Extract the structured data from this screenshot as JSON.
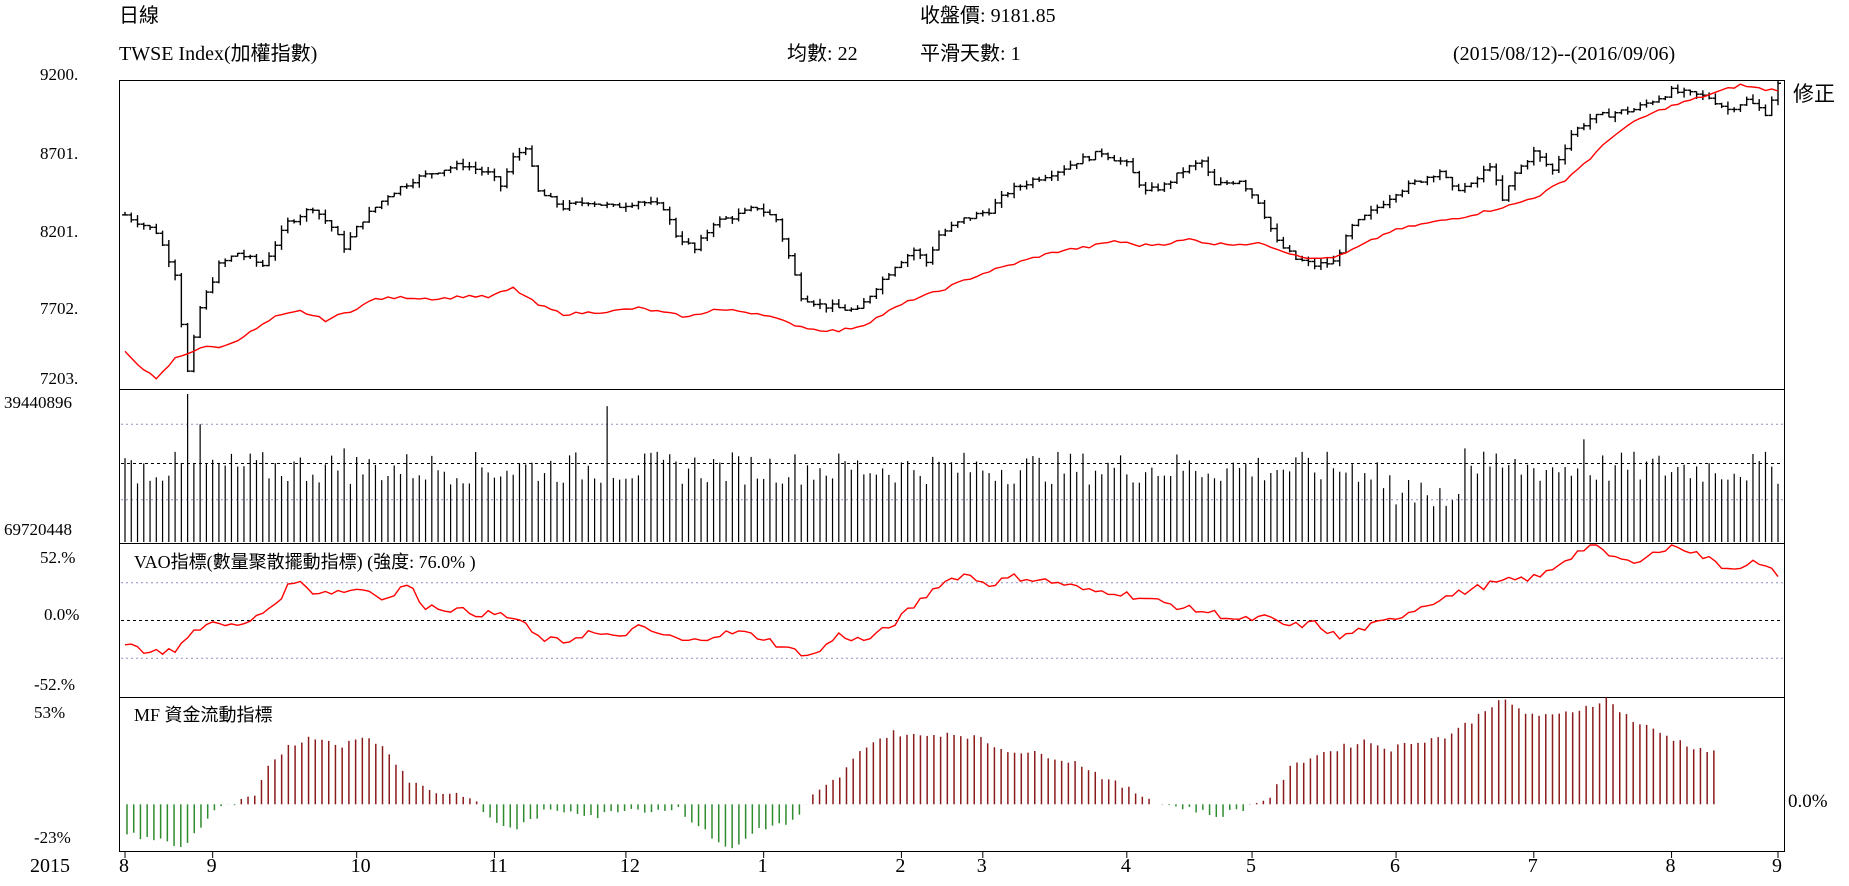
{
  "header": {
    "period": "日線",
    "close_label": "收盤價",
    "close_value": "9181.85",
    "index_name": "TWSE Index(加權指數)",
    "ma_label": "均數",
    "ma_value": "22",
    "smooth_label": "平滑天數",
    "smooth_value": "1",
    "date_range": "(2015/08/12)--(2016/09/06)",
    "correction_button": "修正"
  },
  "colors": {
    "price_bars": "#000000",
    "ma_line": "#ff0000",
    "vao_line": "#ff0000",
    "mf_positive": "#8b1a1a",
    "mf_negative": "#2e8b2e",
    "grid_dash": "#9090c0"
  },
  "chart_data": [
    {
      "type": "ohlc",
      "name": "price",
      "ylim": [
        7203,
        9200
      ],
      "yticks": [
        "9200.",
        "8701.",
        "8201.",
        "7702.",
        "7203."
      ],
      "anchors_close": [
        [
          0,
          8330
        ],
        [
          5,
          8220
        ],
        [
          8,
          7950
        ],
        [
          10,
          7300
        ],
        [
          12,
          7720
        ],
        [
          15,
          8000
        ],
        [
          18,
          8080
        ],
        [
          22,
          8000
        ],
        [
          26,
          8280
        ],
        [
          30,
          8380
        ],
        [
          33,
          8250
        ],
        [
          35,
          8120
        ],
        [
          38,
          8300
        ],
        [
          42,
          8460
        ],
        [
          46,
          8560
        ],
        [
          50,
          8620
        ],
        [
          54,
          8660
        ],
        [
          58,
          8600
        ],
        [
          60,
          8520
        ],
        [
          62,
          8700
        ],
        [
          64,
          8780
        ],
        [
          66,
          8480
        ],
        [
          70,
          8380
        ],
        [
          74,
          8420
        ],
        [
          78,
          8380
        ],
        [
          82,
          8420
        ],
        [
          86,
          8380
        ],
        [
          88,
          8200
        ],
        [
          91,
          8100
        ],
        [
          94,
          8280
        ],
        [
          98,
          8330
        ],
        [
          101,
          8380
        ],
        [
          104,
          8300
        ],
        [
          106,
          8060
        ],
        [
          108,
          7800
        ],
        [
          111,
          7740
        ],
        [
          114,
          7720
        ],
        [
          117,
          7700
        ],
        [
          120,
          7860
        ],
        [
          123,
          8000
        ],
        [
          126,
          8100
        ],
        [
          128,
          8020
        ],
        [
          130,
          8200
        ],
        [
          134,
          8300
        ],
        [
          138,
          8360
        ],
        [
          141,
          8480
        ],
        [
          145,
          8560
        ],
        [
          149,
          8620
        ],
        [
          152,
          8680
        ],
        [
          156,
          8740
        ],
        [
          160,
          8660
        ],
        [
          163,
          8480
        ],
        [
          166,
          8520
        ],
        [
          169,
          8620
        ],
        [
          172,
          8680
        ],
        [
          174,
          8520
        ],
        [
          178,
          8560
        ],
        [
          181,
          8420
        ],
        [
          184,
          8150
        ],
        [
          187,
          8040
        ],
        [
          190,
          8000
        ],
        [
          193,
          8020
        ],
        [
          196,
          8250
        ],
        [
          200,
          8380
        ],
        [
          203,
          8480
        ],
        [
          207,
          8560
        ],
        [
          210,
          8620
        ],
        [
          212,
          8500
        ],
        [
          215,
          8520
        ],
        [
          218,
          8660
        ],
        [
          220,
          8420
        ],
        [
          222,
          8600
        ],
        [
          225,
          8740
        ],
        [
          228,
          8620
        ],
        [
          231,
          8860
        ],
        [
          234,
          8960
        ],
        [
          238,
          9000
        ],
        [
          241,
          9020
        ],
        [
          244,
          9080
        ],
        [
          247,
          9140
        ],
        [
          250,
          9120
        ],
        [
          253,
          9100
        ],
        [
          256,
          9020
        ],
        [
          259,
          9080
        ],
        [
          262,
          9000
        ],
        [
          264,
          9181.85
        ]
      ],
      "ma_anchors": [
        [
          0,
          7430
        ],
        [
          5,
          7250
        ],
        [
          8,
          7390
        ],
        [
          12,
          7460
        ],
        [
          16,
          7470
        ],
        [
          20,
          7560
        ],
        [
          24,
          7660
        ],
        [
          28,
          7700
        ],
        [
          32,
          7640
        ],
        [
          36,
          7700
        ],
        [
          40,
          7780
        ],
        [
          45,
          7790
        ],
        [
          50,
          7780
        ],
        [
          55,
          7800
        ],
        [
          58,
          7790
        ],
        [
          62,
          7850
        ],
        [
          66,
          7740
        ],
        [
          70,
          7680
        ],
        [
          74,
          7690
        ],
        [
          78,
          7700
        ],
        [
          82,
          7720
        ],
        [
          86,
          7690
        ],
        [
          90,
          7660
        ],
        [
          94,
          7710
        ],
        [
          98,
          7700
        ],
        [
          102,
          7680
        ],
        [
          106,
          7620
        ],
        [
          110,
          7580
        ],
        [
          114,
          7570
        ],
        [
          118,
          7610
        ],
        [
          122,
          7700
        ],
        [
          126,
          7780
        ],
        [
          130,
          7830
        ],
        [
          134,
          7900
        ],
        [
          138,
          7960
        ],
        [
          142,
          8010
        ],
        [
          146,
          8060
        ],
        [
          150,
          8100
        ],
        [
          154,
          8120
        ],
        [
          158,
          8160
        ],
        [
          162,
          8130
        ],
        [
          166,
          8140
        ],
        [
          170,
          8170
        ],
        [
          174,
          8140
        ],
        [
          178,
          8140
        ],
        [
          182,
          8140
        ],
        [
          186,
          8080
        ],
        [
          190,
          8040
        ],
        [
          194,
          8060
        ],
        [
          198,
          8140
        ],
        [
          202,
          8220
        ],
        [
          206,
          8260
        ],
        [
          210,
          8290
        ],
        [
          214,
          8320
        ],
        [
          218,
          8360
        ],
        [
          222,
          8400
        ],
        [
          226,
          8460
        ],
        [
          230,
          8560
        ],
        [
          234,
          8700
        ],
        [
          238,
          8860
        ],
        [
          242,
          8960
        ],
        [
          246,
          9030
        ],
        [
          250,
          9080
        ],
        [
          254,
          9130
        ],
        [
          258,
          9180
        ],
        [
          262,
          9150
        ],
        [
          264,
          9150
        ]
      ]
    },
    {
      "type": "bar",
      "name": "volume",
      "yticks": [
        "39440896",
        "69720448"
      ],
      "levels": [
        0.28,
        0.52,
        0.78
      ],
      "spikes": [
        [
          10,
          0.98
        ],
        [
          11,
          0.52
        ],
        [
          12,
          0.78
        ],
        [
          35,
          0.62
        ],
        [
          77,
          0.9
        ],
        [
          214,
          0.62
        ],
        [
          218,
          0.5
        ],
        [
          233,
          0.68
        ]
      ]
    },
    {
      "type": "line",
      "name": "VAO",
      "title": "VAO指標(數量聚散擺動指標) (強度: 76.0% )",
      "yticks": [
        "52.%",
        "0.0%",
        "-52.%"
      ],
      "ylim": [
        -52,
        52
      ],
      "anchors": [
        [
          0,
          -15
        ],
        [
          4,
          -22
        ],
        [
          8,
          -20
        ],
        [
          12,
          -5
        ],
        [
          15,
          0
        ],
        [
          18,
          -5
        ],
        [
          21,
          2
        ],
        [
          24,
          12
        ],
        [
          27,
          28
        ],
        [
          30,
          20
        ],
        [
          34,
          20
        ],
        [
          38,
          22
        ],
        [
          42,
          15
        ],
        [
          45,
          25
        ],
        [
          48,
          10
        ],
        [
          52,
          8
        ],
        [
          56,
          5
        ],
        [
          60,
          4
        ],
        [
          63,
          0
        ],
        [
          66,
          -12
        ],
        [
          70,
          -15
        ],
        [
          74,
          -8
        ],
        [
          78,
          -12
        ],
        [
          82,
          -5
        ],
        [
          86,
          -10
        ],
        [
          90,
          -15
        ],
        [
          94,
          -10
        ],
        [
          98,
          -8
        ],
        [
          102,
          -12
        ],
        [
          106,
          -20
        ],
        [
          110,
          -24
        ],
        [
          114,
          -10
        ],
        [
          118,
          -14
        ],
        [
          122,
          -5
        ],
        [
          126,
          10
        ],
        [
          130,
          25
        ],
        [
          134,
          32
        ],
        [
          138,
          25
        ],
        [
          142,
          30
        ],
        [
          146,
          28
        ],
        [
          150,
          25
        ],
        [
          154,
          20
        ],
        [
          158,
          20
        ],
        [
          162,
          16
        ],
        [
          166,
          12
        ],
        [
          170,
          8
        ],
        [
          174,
          5
        ],
        [
          178,
          0
        ],
        [
          182,
          2
        ],
        [
          186,
          -4
        ],
        [
          190,
          -2
        ],
        [
          194,
          -12
        ],
        [
          198,
          -5
        ],
        [
          202,
          0
        ],
        [
          206,
          8
        ],
        [
          210,
          15
        ],
        [
          214,
          20
        ],
        [
          218,
          25
        ],
        [
          222,
          28
        ],
        [
          226,
          30
        ],
        [
          230,
          42
        ],
        [
          234,
          52
        ],
        [
          237,
          45
        ],
        [
          240,
          40
        ],
        [
          244,
          46
        ],
        [
          248,
          52
        ],
        [
          252,
          44
        ],
        [
          256,
          36
        ],
        [
          260,
          40
        ],
        [
          264,
          32
        ]
      ]
    },
    {
      "type": "bar",
      "name": "MF",
      "title": "MF 資金流動指標",
      "yticks": [
        "53%",
        "-23%",
        "0.0%"
      ],
      "ylim": [
        -23,
        53
      ],
      "anchors": [
        [
          0,
          -15
        ],
        [
          5,
          -18
        ],
        [
          8,
          -22
        ],
        [
          10,
          -15
        ],
        [
          13,
          -3
        ],
        [
          16,
          0
        ],
        [
          19,
          4
        ],
        [
          21,
          18
        ],
        [
          24,
          30
        ],
        [
          28,
          34
        ],
        [
          32,
          30
        ],
        [
          36,
          34
        ],
        [
          39,
          26
        ],
        [
          42,
          12
        ],
        [
          46,
          6
        ],
        [
          50,
          5
        ],
        [
          52,
          0
        ],
        [
          55,
          -10
        ],
        [
          58,
          -12
        ],
        [
          62,
          -4
        ],
        [
          66,
          -3
        ],
        [
          70,
          -6
        ],
        [
          74,
          -2
        ],
        [
          78,
          -3
        ],
        [
          82,
          -2
        ],
        [
          86,
          -14
        ],
        [
          90,
          -23
        ],
        [
          94,
          -12
        ],
        [
          98,
          -10
        ],
        [
          100,
          -6
        ],
        [
          102,
          4
        ],
        [
          106,
          14
        ],
        [
          110,
          30
        ],
        [
          114,
          36
        ],
        [
          118,
          34
        ],
        [
          122,
          36
        ],
        [
          126,
          34
        ],
        [
          130,
          28
        ],
        [
          134,
          26
        ],
        [
          138,
          24
        ],
        [
          142,
          20
        ],
        [
          146,
          12
        ],
        [
          150,
          6
        ],
        [
          154,
          0
        ],
        [
          158,
          -2
        ],
        [
          162,
          -6
        ],
        [
          166,
          -2
        ],
        [
          170,
          4
        ],
        [
          173,
          18
        ],
        [
          176,
          24
        ],
        [
          180,
          28
        ],
        [
          184,
          32
        ],
        [
          188,
          28
        ],
        [
          192,
          32
        ],
        [
          196,
          34
        ],
        [
          200,
          42
        ],
        [
          204,
          53
        ],
        [
          208,
          46
        ],
        [
          212,
          44
        ],
        [
          216,
          48
        ],
        [
          220,
          53
        ],
        [
          224,
          42
        ],
        [
          228,
          36
        ],
        [
          232,
          30
        ],
        [
          236,
          26
        ]
      ]
    }
  ],
  "xaxis": {
    "year": "2015",
    "labels": [
      "8",
      "9",
      "10",
      "11",
      "12",
      "1",
      "2",
      "3",
      "4",
      "5",
      "6",
      "7",
      "8",
      "9"
    ],
    "label_days": [
      0,
      14,
      37,
      59,
      80,
      102,
      124,
      137,
      160,
      180,
      203,
      225,
      247,
      264
    ]
  }
}
